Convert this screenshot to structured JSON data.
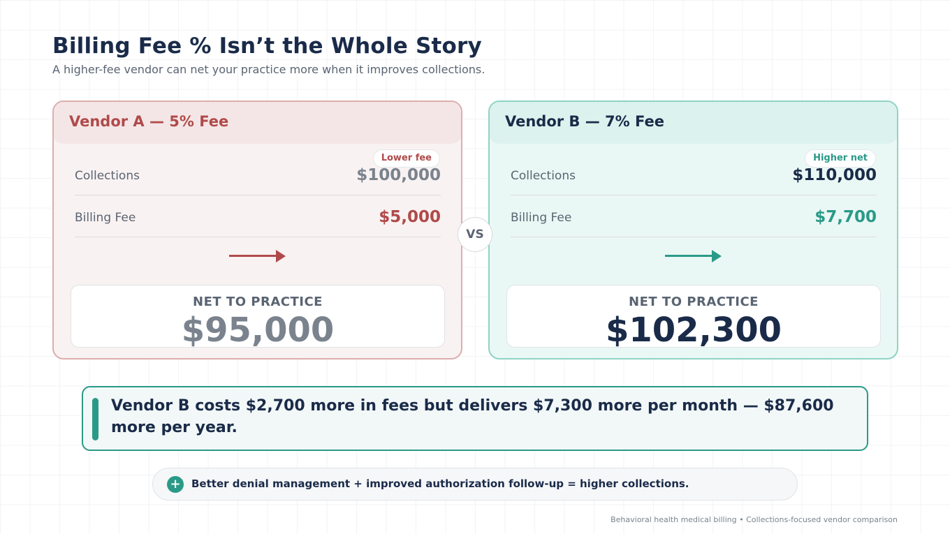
{
  "header": {
    "title": "Billing Fee % Isn’t the Whole Story",
    "subtitle": "A higher-fee vendor can net your practice more when it improves collections."
  },
  "vendor_a": {
    "title": "Vendor A — 5% Fee",
    "badge": "Lower fee",
    "collections_label": "Collections",
    "collections_value": "$100,000",
    "fee_label": "Billing Fee",
    "fee_value": "$5,000",
    "net_label": "NET TO PRACTICE",
    "net_value": "$95,000",
    "accent_color": "#b04a4a"
  },
  "vendor_b": {
    "title": "Vendor B — 7% Fee",
    "badge": "Higher net",
    "collections_label": "Collections",
    "collections_value": "$110,000",
    "fee_label": "Billing Fee",
    "fee_value": "$7,700",
    "net_label": "NET TO PRACTICE",
    "net_value": "$102,300",
    "accent_color": "#2a9a88"
  },
  "vs_label": "VS",
  "summary": {
    "text": "Vendor B costs $2,700 more in fees but delivers $7,300 more per month — $87,600 more per year."
  },
  "tip": {
    "icon": "plus-icon",
    "icon_glyph": "+",
    "text": "Better denial management + improved authorization follow-up = higher collections."
  },
  "footer": "Behavioral health medical billing • Collections-focused vendor comparison"
}
